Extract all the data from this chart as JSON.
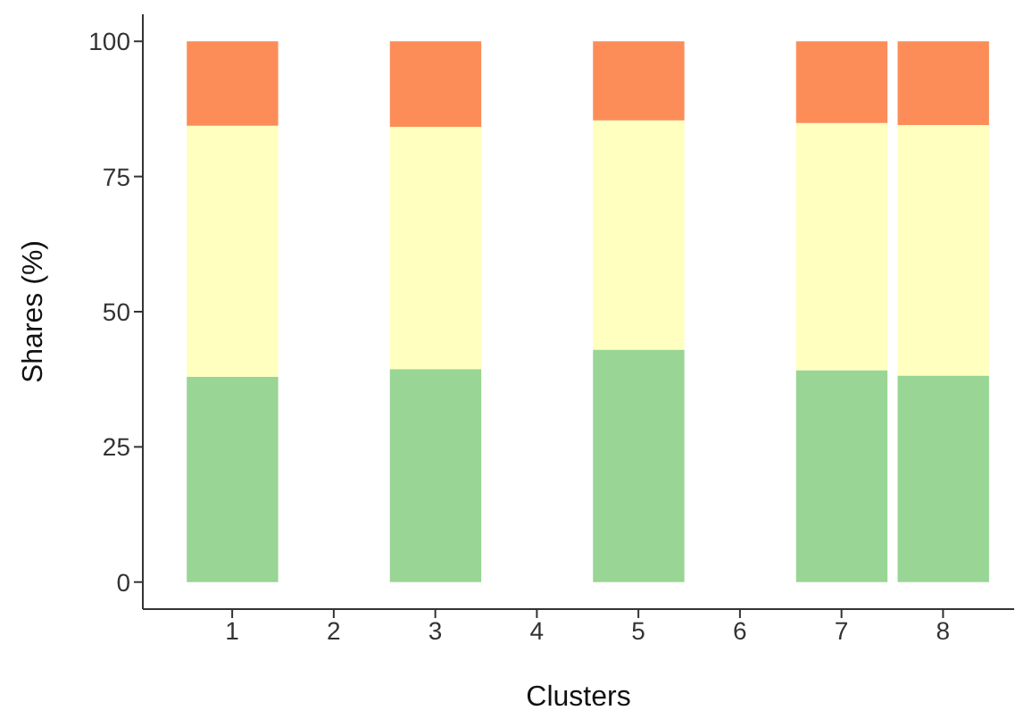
{
  "chart_data": {
    "type": "bar",
    "stacked": true,
    "xlabel": "Clusters",
    "ylabel": "Shares (%)",
    "x": [
      1,
      3,
      5,
      7,
      8
    ],
    "series": [
      {
        "color": "#99d594",
        "values": [
          38,
          39.4,
          43,
          39.2,
          38.2
        ]
      },
      {
        "color": "#ffffbf",
        "values": [
          46.4,
          44.8,
          42.4,
          45.7,
          46.3
        ]
      },
      {
        "color": "#fc8d59",
        "values": [
          15.6,
          15.8,
          14.6,
          15.1,
          15.5
        ]
      }
    ],
    "xlim": [
      0.12,
      8.7
    ],
    "xticks": [
      1,
      2,
      3,
      4,
      5,
      6,
      7,
      8
    ],
    "ylim": [
      -5,
      105
    ],
    "yticks": [
      0,
      25,
      50,
      75,
      100
    ],
    "grid": false,
    "legend": false
  }
}
